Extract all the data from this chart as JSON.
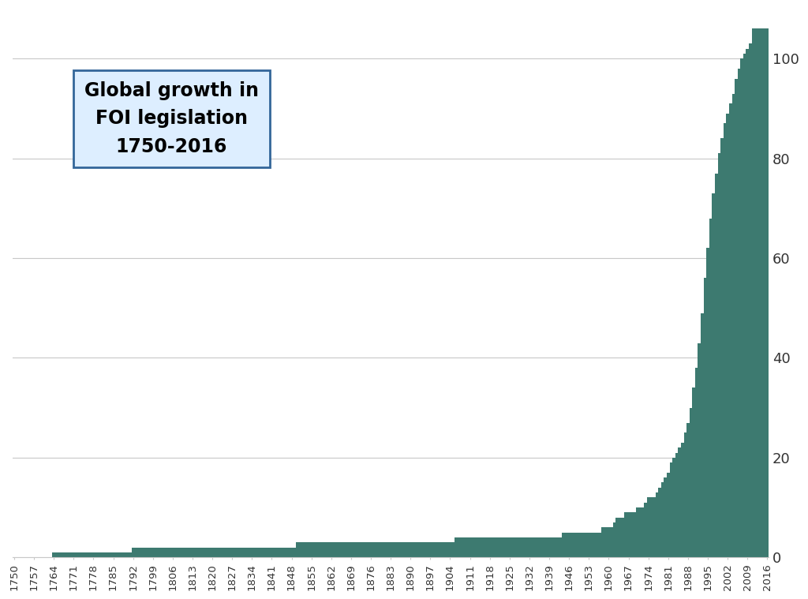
{
  "title": "Global growth in\nFOI legislation\n1750-2016",
  "title_fontsize": 17,
  "fill_color": "#3d7a70",
  "background_color": "#ffffff",
  "ylim": [
    0,
    110
  ],
  "yticks": [
    0,
    20,
    40,
    60,
    80,
    100
  ],
  "x_start": 1750,
  "x_end": 2016,
  "xtick_years": [
    1750,
    1757,
    1764,
    1771,
    1778,
    1785,
    1792,
    1799,
    1806,
    1813,
    1820,
    1827,
    1834,
    1841,
    1848,
    1855,
    1862,
    1869,
    1876,
    1883,
    1890,
    1897,
    1904,
    1911,
    1918,
    1925,
    1932,
    1939,
    1946,
    1953,
    1960,
    1967,
    1974,
    1981,
    1988,
    1995,
    2002,
    2009,
    2016
  ],
  "cumulative_counts": {
    "1750": 0,
    "1751": 0,
    "1752": 0,
    "1753": 0,
    "1754": 0,
    "1755": 0,
    "1756": 0,
    "1757": 0,
    "1758": 0,
    "1759": 0,
    "1760": 0,
    "1761": 0,
    "1762": 0,
    "1763": 0,
    "1764": 1,
    "1765": 1,
    "1766": 1,
    "1767": 1,
    "1768": 1,
    "1769": 1,
    "1770": 1,
    "1771": 1,
    "1772": 1,
    "1773": 1,
    "1774": 1,
    "1775": 1,
    "1776": 1,
    "1777": 1,
    "1778": 1,
    "1779": 1,
    "1780": 1,
    "1781": 1,
    "1782": 1,
    "1783": 1,
    "1784": 1,
    "1785": 1,
    "1786": 1,
    "1787": 1,
    "1788": 1,
    "1789": 1,
    "1790": 1,
    "1791": 1,
    "1792": 2,
    "1793": 2,
    "1794": 2,
    "1795": 2,
    "1796": 2,
    "1797": 2,
    "1798": 2,
    "1799": 2,
    "1800": 2,
    "1801": 2,
    "1802": 2,
    "1803": 2,
    "1804": 2,
    "1805": 2,
    "1806": 2,
    "1807": 2,
    "1808": 2,
    "1809": 2,
    "1810": 2,
    "1811": 2,
    "1812": 2,
    "1813": 2,
    "1814": 2,
    "1815": 2,
    "1816": 2,
    "1817": 2,
    "1818": 2,
    "1819": 2,
    "1820": 2,
    "1821": 2,
    "1822": 2,
    "1823": 2,
    "1824": 2,
    "1825": 2,
    "1826": 2,
    "1827": 2,
    "1828": 2,
    "1829": 2,
    "1830": 2,
    "1831": 2,
    "1832": 2,
    "1833": 2,
    "1834": 2,
    "1835": 2,
    "1836": 2,
    "1837": 2,
    "1838": 2,
    "1839": 2,
    "1840": 2,
    "1841": 2,
    "1842": 2,
    "1843": 2,
    "1844": 2,
    "1845": 2,
    "1846": 2,
    "1847": 2,
    "1848": 2,
    "1849": 2,
    "1850": 3,
    "1851": 3,
    "1852": 3,
    "1853": 3,
    "1854": 3,
    "1855": 3,
    "1856": 3,
    "1857": 3,
    "1858": 3,
    "1859": 3,
    "1860": 3,
    "1861": 3,
    "1862": 3,
    "1863": 3,
    "1864": 3,
    "1865": 3,
    "1866": 3,
    "1867": 3,
    "1868": 3,
    "1869": 3,
    "1870": 3,
    "1871": 3,
    "1872": 3,
    "1873": 3,
    "1874": 3,
    "1875": 3,
    "1876": 3,
    "1877": 3,
    "1878": 3,
    "1879": 3,
    "1880": 3,
    "1881": 3,
    "1882": 3,
    "1883": 3,
    "1884": 3,
    "1885": 3,
    "1886": 3,
    "1887": 3,
    "1888": 3,
    "1889": 3,
    "1890": 3,
    "1891": 3,
    "1892": 3,
    "1893": 3,
    "1894": 3,
    "1895": 3,
    "1896": 3,
    "1897": 3,
    "1898": 3,
    "1899": 3,
    "1900": 3,
    "1901": 3,
    "1902": 3,
    "1903": 3,
    "1904": 3,
    "1905": 3,
    "1906": 4,
    "1907": 4,
    "1908": 4,
    "1909": 4,
    "1910": 4,
    "1911": 4,
    "1912": 4,
    "1913": 4,
    "1914": 4,
    "1915": 4,
    "1916": 4,
    "1917": 4,
    "1918": 4,
    "1919": 4,
    "1920": 4,
    "1921": 4,
    "1922": 4,
    "1923": 4,
    "1924": 4,
    "1925": 4,
    "1926": 4,
    "1927": 4,
    "1928": 4,
    "1929": 4,
    "1930": 4,
    "1931": 4,
    "1932": 4,
    "1933": 4,
    "1934": 4,
    "1935": 4,
    "1936": 4,
    "1937": 4,
    "1938": 4,
    "1939": 4,
    "1940": 4,
    "1941": 4,
    "1942": 4,
    "1943": 4,
    "1944": 5,
    "1945": 5,
    "1946": 5,
    "1947": 5,
    "1948": 5,
    "1949": 5,
    "1950": 5,
    "1951": 5,
    "1952": 5,
    "1953": 5,
    "1954": 5,
    "1955": 5,
    "1956": 5,
    "1957": 5,
    "1958": 6,
    "1959": 6,
    "1960": 6,
    "1961": 6,
    "1962": 7,
    "1963": 8,
    "1964": 8,
    "1965": 8,
    "1966": 9,
    "1967": 9,
    "1968": 9,
    "1969": 9,
    "1970": 10,
    "1971": 10,
    "1972": 10,
    "1973": 11,
    "1974": 12,
    "1975": 12,
    "1976": 12,
    "1977": 13,
    "1978": 14,
    "1979": 15,
    "1980": 16,
    "1981": 17,
    "1982": 19,
    "1983": 20,
    "1984": 21,
    "1985": 22,
    "1986": 23,
    "1987": 25,
    "1988": 27,
    "1989": 30,
    "1990": 34,
    "1991": 38,
    "1992": 43,
    "1993": 49,
    "1994": 56,
    "1995": 62,
    "1996": 68,
    "1997": 73,
    "1998": 77,
    "1999": 81,
    "2000": 84,
    "2001": 87,
    "2002": 89,
    "2003": 91,
    "2004": 93,
    "2005": 96,
    "2006": 98,
    "2007": 100,
    "2008": 101,
    "2009": 102,
    "2010": 103,
    "2011": 106,
    "2012": 106,
    "2013": 106,
    "2014": 106,
    "2015": 106,
    "2016": 106
  },
  "gridline_color": "#c8c8c8",
  "tick_color": "#333333",
  "text_box_facecolor": "#ddeeff",
  "text_box_edgecolor": "#336699"
}
